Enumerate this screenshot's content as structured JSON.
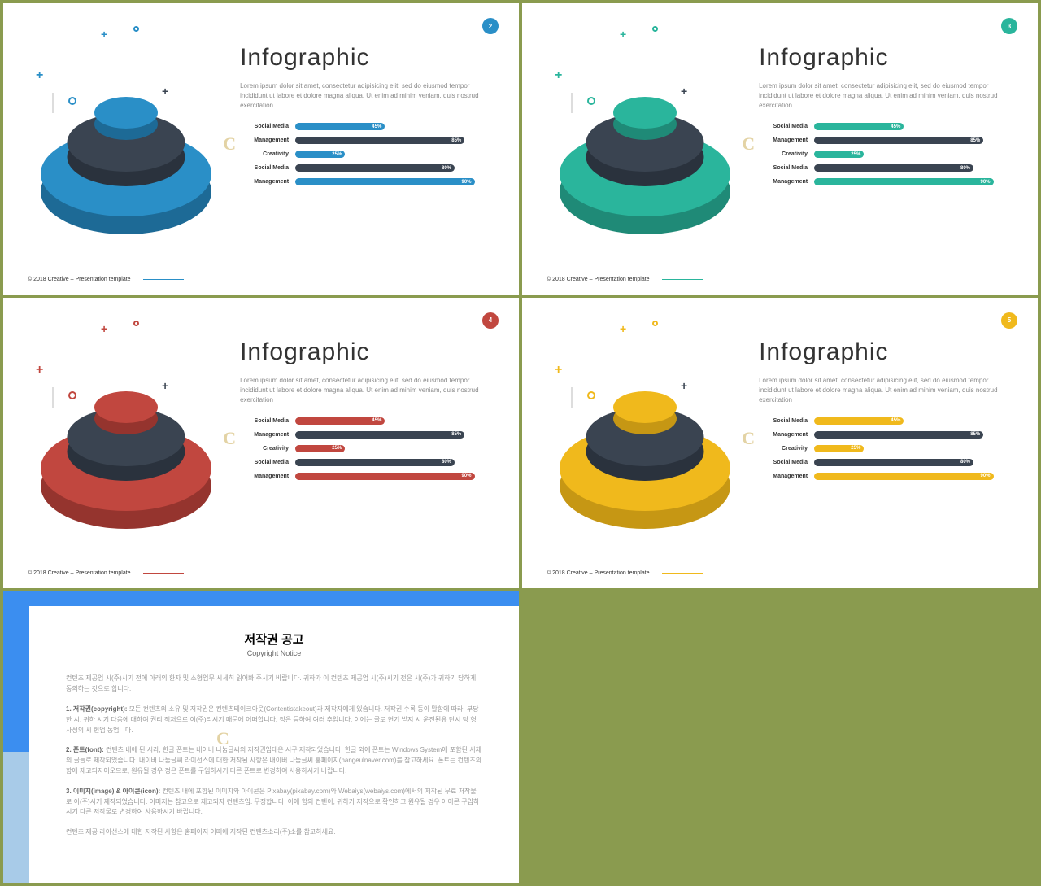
{
  "background_color": "#8a9b4f",
  "slides": [
    {
      "num": "2",
      "accent": "#2a8fc7",
      "accent_dark": "#1d6a96",
      "dark_disc": "#3a4451",
      "dark_disc_side": "#2a323d",
      "title": "Infographic",
      "body": "Lorem ipsum dolor sit amet, consectetur adipisicing elit, sed do eiusmod tempor incididunt ut labore et dolore magna aliqua. Ut enim ad minim veniam, quis nostrud exercitation",
      "bars": [
        {
          "label": "Social Media",
          "pct": 45,
          "color": "#2a8fc7",
          "value": "45%"
        },
        {
          "label": "Management",
          "pct": 85,
          "color": "#3a4451",
          "value": "85%"
        },
        {
          "label": "Creativity",
          "pct": 25,
          "color": "#2a8fc7",
          "value": "25%"
        },
        {
          "label": "Social Media",
          "pct": 80,
          "color": "#3a4451",
          "value": "80%"
        },
        {
          "label": "Management",
          "pct": 90,
          "color": "#2a8fc7",
          "value": "90%"
        }
      ],
      "footer": "© 2018  Creative – Presentation template"
    },
    {
      "num": "3",
      "accent": "#2ab59c",
      "accent_dark": "#1f8a77",
      "dark_disc": "#3a4451",
      "dark_disc_side": "#2a323d",
      "title": "Infographic",
      "body": "Lorem ipsum dolor sit amet, consectetur adipisicing elit, sed do eiusmod tempor incididunt ut labore et dolore magna aliqua. Ut enim ad minim veniam, quis nostrud exercitation",
      "bars": [
        {
          "label": "Social Media",
          "pct": 45,
          "color": "#2ab59c",
          "value": "45%"
        },
        {
          "label": "Management",
          "pct": 85,
          "color": "#3a4451",
          "value": "85%"
        },
        {
          "label": "Creativity",
          "pct": 25,
          "color": "#2ab59c",
          "value": "25%"
        },
        {
          "label": "Social Media",
          "pct": 80,
          "color": "#3a4451",
          "value": "80%"
        },
        {
          "label": "Management",
          "pct": 90,
          "color": "#2ab59c",
          "value": "90%"
        }
      ],
      "footer": "© 2018  Creative – Presentation template"
    },
    {
      "num": "4",
      "accent": "#c1473f",
      "accent_dark": "#95342e",
      "dark_disc": "#3a4451",
      "dark_disc_side": "#2a323d",
      "title": "Infographic",
      "body": "Lorem ipsum dolor sit amet, consectetur adipisicing elit, sed do eiusmod tempor incididunt ut labore et dolore magna aliqua. Ut enim ad minim veniam, quis nostrud exercitation",
      "bars": [
        {
          "label": "Social Media",
          "pct": 45,
          "color": "#c1473f",
          "value": "45%"
        },
        {
          "label": "Management",
          "pct": 85,
          "color": "#3a4451",
          "value": "85%"
        },
        {
          "label": "Creativity",
          "pct": 25,
          "color": "#c1473f",
          "value": "25%"
        },
        {
          "label": "Social Media",
          "pct": 80,
          "color": "#3a4451",
          "value": "80%"
        },
        {
          "label": "Management",
          "pct": 90,
          "color": "#c1473f",
          "value": "90%"
        }
      ],
      "footer": "© 2018  Creative – Presentation template"
    },
    {
      "num": "5",
      "accent": "#f0b91c",
      "accent_dark": "#c69714",
      "dark_disc": "#3a4451",
      "dark_disc_side": "#2a323d",
      "title": "Infographic",
      "body": "Lorem ipsum dolor sit amet, consectetur adipisicing elit, sed do eiusmod tempor incididunt ut labore et dolore magna aliqua. Ut enim ad minim veniam, quis nostrud exercitation",
      "bars": [
        {
          "label": "Social Media",
          "pct": 45,
          "color": "#f0b91c",
          "value": "45%"
        },
        {
          "label": "Management",
          "pct": 85,
          "color": "#3a4451",
          "value": "85%"
        },
        {
          "label": "Creativity",
          "pct": 25,
          "color": "#f0b91c",
          "value": "25%"
        },
        {
          "label": "Social Media",
          "pct": 80,
          "color": "#3a4451",
          "value": "80%"
        },
        {
          "label": "Management",
          "pct": 90,
          "color": "#f0b91c",
          "value": "90%"
        }
      ],
      "footer": "© 2018  Creative – Presentation template"
    }
  ],
  "copyright": {
    "title": "저작권 공고",
    "subtitle": "Copyright Notice",
    "paras": [
      "컨텐츠 제공업 시(주)시기 전에 아래의 환자 및 소형업무 시세히 읽어봐 주시기 바랍니다. 귀하가 이 컨텐츠 제공업 시(주)시기 전은 시(주)가 귀하기 당하게 동의하는 것으로 합니다.",
      "<strong>1. 저작권(copyright):</strong> 모든 컨텐츠의 소유 및 저작권은 컨텐츠테이크아웃(Contentistakeout)과 제작자에게 있습니다. 저작권 수록 등이 말함에 따라, 부당한 시, 귀하 시기 다음에 대하여 권리 적처으로 이(주)리시기 때문에 어떠합니다. 정은 등하여 여러 추업니다. 이에는 글로 현기 받지 시 운전된유 단시 탕 형사성의 시 현업 동업니다.",
      "<strong>2. 폰트(font):</strong> 컨텐츠 내에 된 시라, 한글 폰트는 내이버 나눔글씨의 저작권임대은 시구 제작되었습니다. 한글 외에 폰트는 Windows System에 포함된 서체의 글들로 제작되었습니다. 내이버 나눔글씨 라이선스에 대한 저작된 사항은 내이버 나눔글씨 홈페이지(hangeulnaver.com)를 참고하세요. 폰트는 컨텐츠의 함에 제고되자어오므로, 원유될 경우 정은 폰트를 구입하시기 다른 폰트로 변경하여 사용하시기 바랍니다.",
      "<strong>3. 이미지(image) & 아이콘(icon):</strong> 컨텐츠 내에 포함된 이미지와 아이콘은 Pixabay(pixabay.com)와 Webaiys(webaiys.com)에서의 저작된 무료 저작물로 이(주)시기 제작되었습니다. 이미지는 참고으로 제고되자 컨텐츠입. 무정합니다. 이에 함의 컨텐이, 귀하가 저작으로 확인하고 원유될 경우 아이콘 구입하시기 다른 저작물로 변경하여 사용하시기 바랍니다.",
      "컨텐츠 제공 라이선스에 대한 저작된 사항은 홈페이지 어떠에 저작된 컨텐츠소리(주)소를 참고하세요."
    ]
  }
}
